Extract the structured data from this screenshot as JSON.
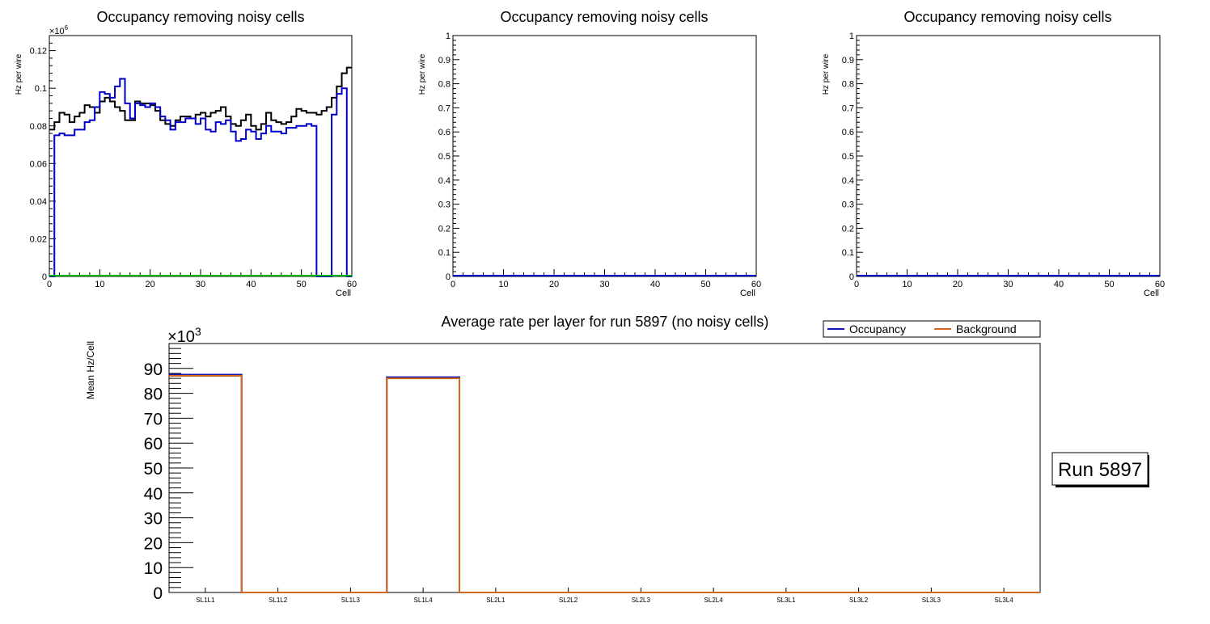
{
  "colors": {
    "occupancy": "#1414b4",
    "background_series": "#d2691e",
    "top_black": "#000000",
    "top_blue": "#0000c8",
    "top_green": "#00b400"
  },
  "top_panels": {
    "title": "Occupancy removing noisy cells",
    "xlabel": "Cell",
    "ylabel": "Hz per wire",
    "x_ticks": [
      "0",
      "10",
      "20",
      "30",
      "40",
      "50",
      "60"
    ],
    "panel1_exponent": "×10",
    "panel1_exponent_power": "6",
    "panel1_y_ticks": [
      "0",
      "0.02",
      "0.04",
      "0.06",
      "0.08",
      "0.1",
      "0.12"
    ],
    "empty_y_ticks": [
      "0",
      "0.1",
      "0.2",
      "0.3",
      "0.4",
      "0.5",
      "0.6",
      "0.7",
      "0.8",
      "0.9",
      "1"
    ]
  },
  "bottom_panel": {
    "title": "Average rate per layer for run 5897 (no noisy cells)",
    "ylabel": "Mean Hz/Cell",
    "exponent": "×10",
    "exponent_power": "3",
    "y_ticks": [
      "0",
      "10",
      "20",
      "30",
      "40",
      "50",
      "60",
      "70",
      "80",
      "90"
    ],
    "legend": {
      "occupancy": "Occupancy",
      "background": "Background"
    },
    "run_label": "Run 5897"
  },
  "chart_data": [
    {
      "type": "line",
      "title": "Occupancy removing noisy cells",
      "xlabel": "Cell",
      "ylabel": "Hz per wire",
      "y_scale": "x10^6",
      "xlim": [
        0,
        60
      ],
      "ylim": [
        0,
        0.128
      ],
      "x": [
        0,
        1,
        2,
        3,
        4,
        5,
        6,
        7,
        8,
        9,
        10,
        11,
        12,
        13,
        14,
        15,
        16,
        17,
        18,
        19,
        20,
        21,
        22,
        23,
        24,
        25,
        26,
        27,
        28,
        29,
        30,
        31,
        32,
        33,
        34,
        35,
        36,
        37,
        38,
        39,
        40,
        41,
        42,
        43,
        44,
        45,
        46,
        47,
        48,
        49,
        50,
        51,
        52,
        53,
        54,
        55,
        56,
        57,
        58,
        59
      ],
      "series": [
        {
          "name": "black",
          "color": "#000000",
          "values": [
            0.078,
            0.082,
            0.087,
            0.086,
            0.082,
            0.085,
            0.087,
            0.091,
            0.09,
            0.087,
            0.093,
            0.095,
            0.093,
            0.09,
            0.088,
            0.083,
            0.083,
            0.093,
            0.092,
            0.092,
            0.091,
            0.088,
            0.083,
            0.081,
            0.08,
            0.083,
            0.085,
            0.085,
            0.084,
            0.086,
            0.087,
            0.085,
            0.087,
            0.088,
            0.09,
            0.085,
            0.081,
            0.08,
            0.083,
            0.086,
            0.08,
            0.078,
            0.081,
            0.087,
            0.083,
            0.082,
            0.081,
            0.082,
            0.085,
            0.089,
            0.088,
            0.087,
            0.087,
            0.086,
            0.088,
            0.09,
            0.095,
            0.101,
            0.108,
            0.111
          ]
        },
        {
          "name": "blue",
          "color": "#0000c8",
          "values": [
            0,
            0.075,
            0.076,
            0.075,
            0.075,
            0.078,
            0.078,
            0.082,
            0.083,
            0.09,
            0.098,
            0.097,
            0.095,
            0.101,
            0.105,
            0.092,
            0.084,
            0.092,
            0.091,
            0.09,
            0.092,
            0.09,
            0.085,
            0.083,
            0.078,
            0.082,
            0.082,
            0.084,
            0.084,
            0.081,
            0.084,
            0.078,
            0.077,
            0.082,
            0.081,
            0.083,
            0.077,
            0.072,
            0.073,
            0.078,
            0.077,
            0.073,
            0.076,
            0.08,
            0.077,
            0.077,
            0.076,
            0.079,
            0.079,
            0.08,
            0.08,
            0.081,
            0.08,
            0.0,
            0.0,
            0.0,
            0.086,
            0.097,
            0.1,
            0.0
          ]
        },
        {
          "name": "green",
          "color": "#00b400",
          "values": [
            0,
            0,
            0,
            0,
            0,
            0,
            0,
            0,
            0,
            0,
            0,
            0,
            0,
            0,
            0,
            0,
            0,
            0,
            0,
            0,
            0,
            0,
            0,
            0,
            0,
            0,
            0,
            0,
            0,
            0,
            0,
            0,
            0,
            0,
            0,
            0,
            0,
            0,
            0,
            0,
            0,
            0,
            0,
            0,
            0,
            0,
            0,
            0,
            0,
            0,
            0,
            0,
            0,
            0,
            0,
            0,
            0,
            0,
            0,
            0
          ]
        }
      ]
    },
    {
      "type": "line",
      "title": "Occupancy removing noisy cells",
      "xlabel": "Cell",
      "ylabel": "Hz per wire",
      "xlim": [
        0,
        60
      ],
      "ylim": [
        0,
        1
      ],
      "series": [
        {
          "name": "blue",
          "color": "#0000c8",
          "values": [
            0,
            0
          ]
        }
      ]
    },
    {
      "type": "line",
      "title": "Occupancy removing noisy cells",
      "xlabel": "Cell",
      "ylabel": "Hz per wire",
      "xlim": [
        0,
        60
      ],
      "ylim": [
        0,
        1
      ],
      "series": [
        {
          "name": "blue",
          "color": "#0000c8",
          "values": [
            0,
            0
          ]
        }
      ]
    },
    {
      "type": "bar",
      "title": "Average rate per layer for run 5897 (no noisy cells)",
      "xlabel": "",
      "ylabel": "Mean Hz/Cell",
      "y_scale": "x10^3",
      "ylim": [
        0,
        100
      ],
      "categories": [
        "SL1L1",
        "SL1L2",
        "SL1L3",
        "SL1L4",
        "SL2L1",
        "SL2L2",
        "SL2L3",
        "SL2L4",
        "SL3L1",
        "SL3L2",
        "SL3L3",
        "SL3L4"
      ],
      "series": [
        {
          "name": "Occupancy",
          "color": "#1414b4",
          "values": [
            87.5,
            0,
            0,
            86.5,
            0,
            0,
            0,
            0,
            0,
            0,
            0,
            0
          ]
        },
        {
          "name": "Background",
          "color": "#d2691e",
          "values": [
            87.0,
            0,
            0,
            86.0,
            0,
            0,
            0,
            0,
            0,
            0,
            0,
            0
          ]
        }
      ],
      "legend": "top-right"
    }
  ]
}
